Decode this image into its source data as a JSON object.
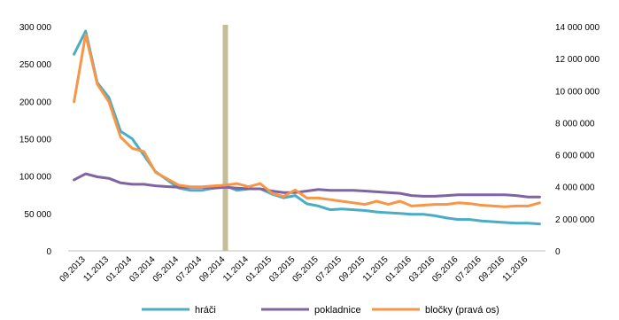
{
  "chart_data": {
    "type": "line",
    "title": "",
    "xlabel": "",
    "ylabel": "",
    "y2label": "",
    "x": [
      "08.2013",
      "09.2013",
      "10.2013",
      "11.2013",
      "12.2013",
      "01.2014",
      "02.2014",
      "03.2014",
      "04.2014",
      "05.2014",
      "06.2014",
      "07.2014",
      "08.2014",
      "09.2014",
      "10.2014",
      "11.2014",
      "12.2014",
      "01.2015",
      "02.2015",
      "03.2015",
      "04.2015",
      "05.2015",
      "06.2015",
      "07.2015",
      "08.2015",
      "09.2015",
      "10.2015",
      "11.2015",
      "12.2015",
      "01.2016",
      "02.2016",
      "03.2016",
      "04.2016",
      "05.2016",
      "06.2016",
      "07.2016",
      "08.2016",
      "09.2016",
      "10.2016",
      "11.2016",
      "12.2016"
    ],
    "x_tick_labels": [
      "09.2013",
      "11.2013",
      "01.2014",
      "03.2014",
      "05.2014",
      "07.2014",
      "09.2014",
      "11.2014",
      "01.2015",
      "03.2015",
      "05.2015",
      "07.2015",
      "09.2015",
      "11.2015",
      "01.2016",
      "03.2016",
      "05.2016",
      "07.2016",
      "09.2016",
      "11.2016"
    ],
    "ylim": [
      0,
      300000
    ],
    "y_ticks": [
      "0",
      "50 000",
      "100 000",
      "150 000",
      "200 000",
      "250 000",
      "300 000"
    ],
    "y2lim": [
      0,
      14000000
    ],
    "y2_ticks": [
      "0",
      "2 000 000",
      "4 000 000",
      "6 000 000",
      "8 000 000",
      "10 000 000",
      "12 000 000",
      "14 000 000"
    ],
    "marker": {
      "x": "09.2014",
      "color": "#c4bd97"
    },
    "legend_position": "bottom",
    "grid": false,
    "series": [
      {
        "name": "hráči",
        "axis": "left",
        "color": "#4bacc6",
        "values": [
          263000,
          294000,
          225000,
          205000,
          160000,
          150000,
          128000,
          106000,
          95000,
          84000,
          81000,
          81000,
          84000,
          87000,
          81000,
          83000,
          83000,
          76000,
          71000,
          74000,
          63000,
          60000,
          55000,
          56000,
          55000,
          54000,
          52000,
          51000,
          50000,
          49000,
          49000,
          47000,
          44000,
          42000,
          42000,
          40000,
          39000,
          38000,
          37000,
          37000,
          36000
        ]
      },
      {
        "name": "pokladnice",
        "axis": "left",
        "color": "#8064a2",
        "values": [
          95000,
          103000,
          99000,
          97000,
          91000,
          89000,
          89000,
          87000,
          86000,
          85000,
          85000,
          85000,
          84000,
          85000,
          84000,
          83000,
          83000,
          80000,
          78000,
          78000,
          80000,
          82000,
          81000,
          81000,
          81000,
          80000,
          79000,
          78000,
          77000,
          74000,
          73000,
          73000,
          74000,
          75000,
          75000,
          75000,
          75000,
          75000,
          74000,
          72000,
          72000
        ]
      },
      {
        "name": "bločky (pravá os)",
        "axis": "right",
        "color": "#f79646",
        "values": [
          9300000,
          13500000,
          10400000,
          9300000,
          7100000,
          6400000,
          6200000,
          4900000,
          4500000,
          4100000,
          4000000,
          4000000,
          4050000,
          4100000,
          4200000,
          4000000,
          4200000,
          3600000,
          3400000,
          3800000,
          3300000,
          3300000,
          3200000,
          3100000,
          3000000,
          2900000,
          3100000,
          2900000,
          3100000,
          2800000,
          2850000,
          2900000,
          2900000,
          3000000,
          2950000,
          2850000,
          2800000,
          2750000,
          2800000,
          2800000,
          3000000
        ]
      }
    ]
  }
}
